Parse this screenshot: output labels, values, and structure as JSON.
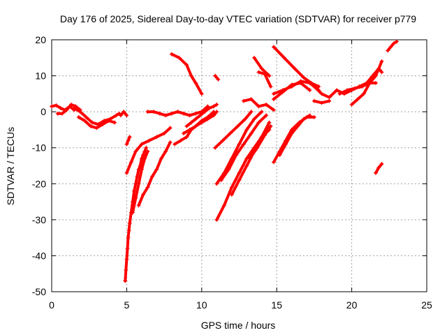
{
  "chart_data": {
    "type": "scatter",
    "title": "Day 176 of 2025, Sidereal Day-to-day VTEC variation (SDTVAR) for receiver p779",
    "xlabel": "GPS time / hours",
    "ylabel": "SDTVAR / TECUs",
    "xlim": [
      0,
      25
    ],
    "ylim": [
      -50,
      20
    ],
    "xticks": [
      0,
      5,
      10,
      15,
      20,
      25
    ],
    "yticks": [
      -50,
      -40,
      -30,
      -20,
      -10,
      0,
      10,
      20
    ],
    "grid": true,
    "marker": "plus",
    "color": "#ff0000",
    "series": [
      {
        "x": [
          0.0,
          0.3,
          0.6,
          0.9,
          1.2,
          1.5
        ],
        "y": [
          1.5,
          1.8,
          1.0,
          0.5,
          1.5,
          0.5
        ]
      },
      {
        "x": [
          0.4,
          0.7,
          1.0,
          1.3,
          1.6,
          1.9
        ],
        "y": [
          -0.5,
          -0.5,
          0.5,
          2.0,
          1.5,
          0.5
        ]
      },
      {
        "x": [
          1.5,
          1.9,
          2.3,
          2.7,
          3.1,
          3.5,
          3.9,
          4.3,
          4.5
        ],
        "y": [
          1.0,
          0.0,
          -1.5,
          -3.0,
          -3.5,
          -2.5,
          -2.0,
          -1.0,
          -0.5
        ]
      },
      {
        "x": [
          1.8,
          2.2,
          2.6,
          3.0,
          3.4,
          3.8,
          4.2
        ],
        "y": [
          -1.5,
          -2.5,
          -4.0,
          -4.5,
          -3.5,
          -2.5,
          -3.0
        ]
      },
      {
        "x": [
          4.6,
          4.8,
          5.0
        ],
        "y": [
          -1.0,
          0.0,
          -1.0
        ]
      },
      {
        "x": [
          5.0,
          5.1,
          5.2
        ],
        "y": [
          -9.0,
          -8.0,
          -7.0
        ]
      },
      {
        "x": [
          4.9,
          4.95,
          5.0,
          5.05,
          5.1,
          5.15,
          5.2,
          5.3,
          5.4,
          5.5
        ],
        "y": [
          -47.0,
          -44.0,
          -41.0,
          -38.0,
          -35.0,
          -33.0,
          -31.0,
          -28.0,
          -25.0,
          -22.0
        ]
      },
      {
        "x": [
          5.5,
          5.6,
          5.7,
          5.8,
          5.9,
          6.0,
          6.1,
          6.2,
          6.3
        ],
        "y": [
          -22.0,
          -20.0,
          -18.0,
          -16.0,
          -15.0,
          -13.0,
          -12.0,
          -11.0,
          -10.0
        ]
      },
      {
        "x": [
          5.0,
          5.3,
          5.6,
          6.0,
          6.5,
          7.0,
          7.5,
          7.9
        ],
        "y": [
          -17.0,
          -14.0,
          -11.0,
          -9.0,
          -8.0,
          -7.0,
          -6.0,
          -4.5
        ]
      },
      {
        "x": [
          5.4,
          5.6,
          5.8,
          6.0,
          6.2,
          6.4
        ],
        "y": [
          -28.0,
          -24.0,
          -20.0,
          -16.0,
          -13.0,
          -11.0
        ]
      },
      {
        "x": [
          5.8,
          6.1,
          6.4,
          6.7,
          7.0,
          7.3,
          7.6,
          7.9
        ],
        "y": [
          -26.0,
          -23.0,
          -21.0,
          -18.0,
          -16.0,
          -13.0,
          -11.0,
          -8.5
        ]
      },
      {
        "x": [
          6.4,
          6.8,
          7.2,
          7.6,
          8.0,
          8.4,
          8.8,
          9.2,
          9.6,
          10.0,
          10.4
        ],
        "y": [
          0.0,
          0.0,
          -0.5,
          -1.0,
          -0.5,
          0.0,
          -0.5,
          -1.0,
          -0.5,
          0.0,
          1.5
        ]
      },
      {
        "x": [
          8.2,
          8.6,
          9.0,
          9.3,
          9.6,
          10.0,
          10.4,
          10.8
        ],
        "y": [
          -9.0,
          -8.0,
          -7.0,
          -5.0,
          -4.0,
          -2.5,
          -1.5,
          0.0
        ]
      },
      {
        "x": [
          9.0,
          9.3,
          9.6,
          9.9,
          10.2,
          10.5,
          10.8,
          11.0
        ],
        "y": [
          -4.0,
          -3.0,
          -2.0,
          -1.0,
          0.0,
          1.0,
          1.5,
          2.0
        ]
      },
      {
        "x": [
          8.8,
          9.2,
          9.6,
          10.0,
          10.4,
          10.8,
          11.0
        ],
        "y": [
          -6.0,
          -5.0,
          -4.0,
          -3.0,
          -2.0,
          -1.0,
          0.0
        ]
      },
      {
        "x": [
          8.0,
          8.5,
          9.0,
          9.3,
          9.6,
          10.0
        ],
        "y": [
          16.0,
          15.0,
          13.0,
          10.0,
          8.0,
          5.0
        ]
      },
      {
        "x": [
          10.9,
          11.1
        ],
        "y": [
          10.0,
          9.0
        ]
      },
      {
        "x": [
          10.9,
          11.4,
          11.9,
          12.4,
          12.9,
          13.3
        ],
        "y": [
          -10.0,
          -8.0,
          -6.0,
          -4.0,
          -2.0,
          0.0
        ]
      },
      {
        "x": [
          11.0,
          11.5,
          12.0,
          12.5,
          13.0,
          13.5,
          14.0
        ],
        "y": [
          -20.0,
          -17.0,
          -13.0,
          -9.0,
          -5.0,
          -2.0,
          0.0
        ]
      },
      {
        "x": [
          11.3,
          11.8,
          12.3,
          12.8,
          13.3,
          13.8,
          14.3
        ],
        "y": [
          -19.0,
          -16.0,
          -12.0,
          -9.0,
          -6.0,
          -3.0,
          -1.0
        ]
      },
      {
        "x": [
          11.0,
          11.5,
          12.0,
          12.5,
          13.0,
          13.5,
          14.0,
          14.5
        ],
        "y": [
          -30.0,
          -26.0,
          -21.0,
          -17.0,
          -13.0,
          -10.0,
          -7.0,
          -5.0
        ]
      },
      {
        "x": [
          12.0,
          12.5,
          13.0,
          13.5,
          14.0,
          14.5
        ],
        "y": [
          -23.0,
          -19.0,
          -15.0,
          -11.0,
          -7.0,
          -3.0
        ]
      },
      {
        "x": [
          13.2,
          13.7,
          14.2,
          14.6
        ],
        "y": [
          -13.0,
          -10.0,
          -6.5,
          -4.0
        ]
      },
      {
        "x": [
          12.8,
          13.3,
          13.8,
          14.3,
          14.8
        ],
        "y": [
          3.0,
          3.5,
          1.5,
          2.0,
          0.5
        ]
      },
      {
        "x": [
          13.5,
          14.0,
          14.5
        ],
        "y": [
          15.0,
          12.0,
          10.0
        ]
      },
      {
        "x": [
          13.8,
          14.2,
          14.6
        ],
        "y": [
          11.0,
          10.5,
          7.0
        ]
      },
      {
        "x": [
          14.8,
          15.2,
          15.6,
          16.0,
          16.5,
          17.0,
          17.5
        ],
        "y": [
          -14.0,
          -11.0,
          -8.0,
          -5.0,
          -3.0,
          -1.5,
          -1.5
        ]
      },
      {
        "x": [
          15.2,
          15.6,
          16.0,
          16.4,
          16.8,
          17.2
        ],
        "y": [
          -12.0,
          -9.0,
          -6.0,
          -4.0,
          -2.0,
          -1.0
        ]
      },
      {
        "x": [
          14.8,
          15.5,
          16.2,
          16.8,
          17.3,
          17.8
        ],
        "y": [
          18.0,
          15.0,
          12.0,
          9.5,
          8.0,
          7.0
        ]
      },
      {
        "x": [
          14.8,
          15.4,
          16.0,
          16.6,
          17.2,
          17.8
        ],
        "y": [
          5.0,
          6.0,
          7.0,
          8.5,
          8.0,
          6.0
        ]
      },
      {
        "x": [
          14.8,
          15.4,
          16.0,
          16.6,
          17.2
        ],
        "y": [
          3.5,
          5.5,
          7.5,
          8.0,
          6.0
        ]
      },
      {
        "x": [
          17.5,
          18.0,
          18.5,
          19.0,
          19.5,
          20.0,
          20.5
        ],
        "y": [
          7.0,
          5.0,
          4.0,
          6.0,
          5.0,
          6.0,
          7.0
        ]
      },
      {
        "x": [
          17.5,
          18.0,
          18.5
        ],
        "y": [
          3.0,
          2.5,
          3.0
        ]
      },
      {
        "x": [
          19.2,
          19.7,
          20.2,
          20.7,
          21.2,
          21.6
        ],
        "y": [
          5.0,
          6.0,
          6.5,
          7.0,
          8.0,
          8.0
        ]
      },
      {
        "x": [
          20.0,
          20.4,
          20.8,
          21.2,
          21.6,
          22.0
        ],
        "y": [
          2.0,
          3.5,
          5.0,
          8.0,
          10.0,
          14.0
        ]
      },
      {
        "x": [
          20.5,
          21.0,
          21.5,
          21.8,
          22.0
        ],
        "y": [
          7.0,
          8.0,
          10.5,
          12.0,
          11.0
        ]
      },
      {
        "x": [
          21.6,
          21.8,
          22.0
        ],
        "y": [
          -17.0,
          -15.5,
          -14.5
        ]
      },
      {
        "x": [
          22.4,
          22.6,
          22.8,
          23.0
        ],
        "y": [
          17.0,
          18.0,
          19.0,
          19.5
        ]
      }
    ]
  }
}
